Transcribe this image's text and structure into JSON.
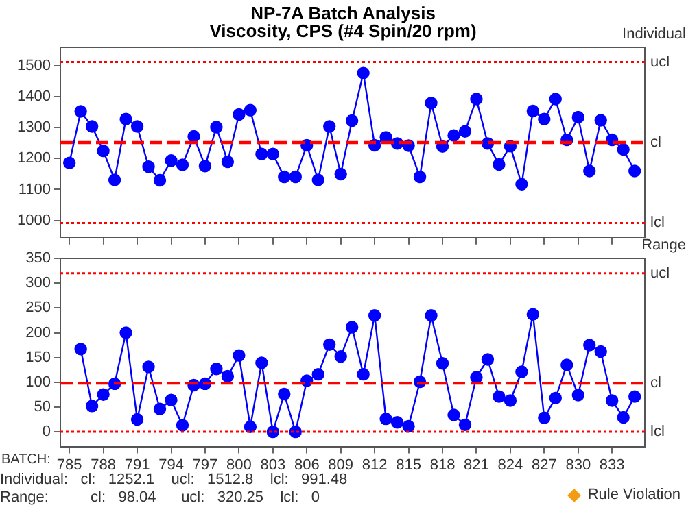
{
  "chart_data": [
    {
      "type": "line",
      "title": "NP-7A Batch Analysis",
      "subtitle": "Viscosity, CPS (#4 Spin/20 rpm)",
      "ylabel": "Individual",
      "x": [
        785,
        786,
        787,
        788,
        789,
        790,
        791,
        792,
        793,
        794,
        795,
        796,
        797,
        798,
        799,
        800,
        801,
        802,
        803,
        804,
        805,
        806,
        807,
        808,
        809,
        810,
        811,
        812,
        813,
        814,
        815,
        816,
        817,
        818,
        819,
        820,
        821,
        822,
        823,
        824,
        825,
        826,
        827,
        828,
        829,
        830,
        831,
        832,
        833,
        834,
        835
      ],
      "series": [
        {
          "color": "#0000ff",
          "values": [
            1186,
            1353,
            1304,
            1225,
            1131,
            1328,
            1304,
            1174,
            1130,
            1194,
            1180,
            1272,
            1176,
            1302,
            1190,
            1343,
            1357,
            1215,
            1215,
            1141,
            1141,
            1243,
            1131,
            1304,
            1150,
            1323,
            1477,
            1243,
            1269,
            1249,
            1242,
            1141,
            1380,
            1239,
            1275,
            1288,
            1393,
            1249,
            1181,
            1240,
            1117,
            1354,
            1328,
            1393,
            1261,
            1334,
            1160,
            1324,
            1261,
            1230,
            1160
          ]
        }
      ],
      "xlim": [
        784.2,
        835.9
      ],
      "xticks": [
        785,
        788,
        791,
        794,
        797,
        800,
        803,
        806,
        809,
        812,
        815,
        818,
        821,
        824,
        827,
        830,
        833
      ],
      "ylim": [
        944,
        1560
      ],
      "yticks": [
        1000,
        1100,
        1200,
        1300,
        1400,
        1500
      ],
      "tick_labels": "y",
      "marker": "circle",
      "line_style": "solid",
      "grid": false,
      "legend": false,
      "ref_lines": [
        {
          "axis": "y",
          "value": 1512.8,
          "label": "ucl",
          "color": "#ff0000",
          "line_style": "dotted"
        },
        {
          "axis": "y",
          "value": 1252.1,
          "label": "cl",
          "color": "#ff0000",
          "line_style": "dashed"
        },
        {
          "axis": "y",
          "value": 991.48,
          "label": "lcl",
          "color": "#ff0000",
          "line_style": "dotted"
        }
      ]
    },
    {
      "type": "line",
      "ylabel": "Range",
      "xlabel": "BATCH:",
      "series": [
        {
          "color": "#0000ff",
          "x": [
            786,
            787,
            788,
            789,
            790,
            791,
            792,
            793,
            794,
            795,
            796,
            797,
            798,
            799,
            800,
            801,
            802,
            803,
            804,
            805,
            806,
            807,
            808,
            809,
            810,
            811,
            812,
            813,
            814,
            815,
            816,
            817,
            818,
            819,
            820,
            821,
            822,
            823,
            824,
            825,
            826,
            827,
            828,
            829,
            830,
            831,
            832,
            833,
            834,
            835
          ],
          "values": [
            167,
            52,
            75,
            97,
            200,
            25,
            131,
            46,
            64,
            13,
            94,
            97,
            127,
            112,
            154,
            10,
            139,
            0,
            76,
            0,
            103,
            116,
            176,
            152,
            211,
            116,
            235,
            26,
            19,
            11,
            101,
            235,
            138,
            34,
            14,
            110,
            146,
            71,
            63,
            121,
            237,
            28,
            68,
            135,
            74,
            175,
            162,
            63,
            29,
            71
          ]
        }
      ],
      "xlim": [
        784.2,
        835.9
      ],
      "xticks": [
        785,
        788,
        791,
        794,
        797,
        800,
        803,
        806,
        809,
        812,
        815,
        818,
        821,
        824,
        827,
        830,
        833
      ],
      "ylim": [
        -30,
        350
      ],
      "yticks": [
        0,
        50,
        100,
        150,
        200,
        250,
        300,
        350
      ],
      "marker": "circle",
      "line_style": "solid",
      "grid": false,
      "legend": false,
      "ref_lines": [
        {
          "axis": "y",
          "value": 320.25,
          "label": "ucl",
          "color": "#ff0000",
          "line_style": "dotted"
        },
        {
          "axis": "y",
          "value": 98.04,
          "label": "cl",
          "color": "#ff0000",
          "line_style": "dashed"
        },
        {
          "axis": "y",
          "value": 0,
          "label": "lcl",
          "color": "#ff0000",
          "line_style": "dotted"
        }
      ],
      "annotations": [
        "Individual:   cl:   1252.1    ucl:   1512.8    lcl:   991.48",
        "Range:          cl:   98.04      ucl:   320.25    lcl:   0",
        "Rule Violation"
      ]
    }
  ]
}
